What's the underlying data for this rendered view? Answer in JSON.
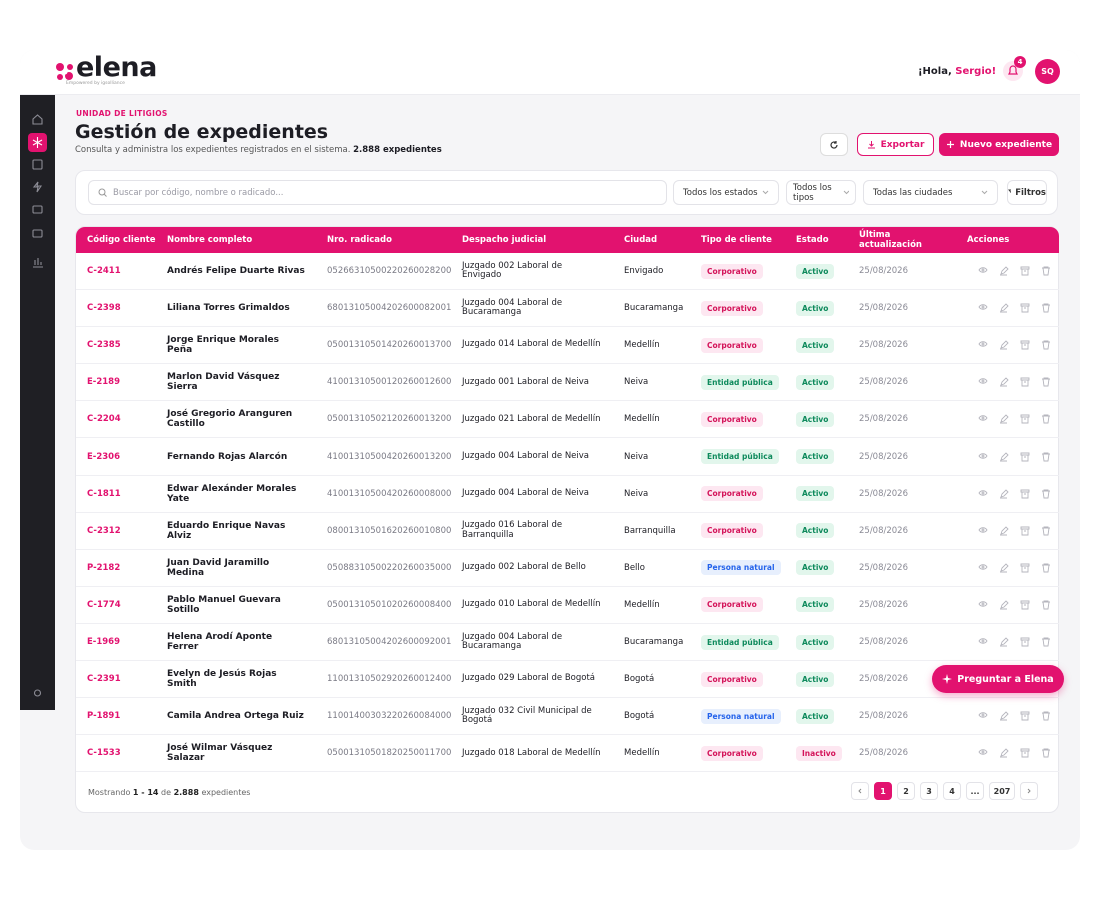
{
  "header": {
    "logo": "elena",
    "logo_tagline": "Empowered by igsolliance",
    "greeting": "¡Hola,",
    "user_name": "Sergio!",
    "notifications": "4",
    "avatar": "SQ"
  },
  "page": {
    "eyebrow": "UNIDAD DE LITIGIOS",
    "title": "Gestión de expedientes",
    "subtitle": "Consulta y administra los expedientes registrados en el sistema.",
    "total": "2.888 expedientes",
    "export_button": "Exportar",
    "new_button": "Nuevo expediente"
  },
  "filters": {
    "search_placeholder": "Buscar por código, nombre o radicado...",
    "status": "Todos los estados",
    "type": "Todos los tipos",
    "city": "Todas las ciudades",
    "button": "Filtros"
  },
  "table": {
    "columns": [
      "Código cliente",
      "Nombre completo",
      "Nro. radicado",
      "Despacho judicial",
      "Ciudad",
      "Tipo de cliente",
      "Estado",
      "Última actualización",
      "Acciones"
    ],
    "rows": [
      {
        "code": "C-2411",
        "name": "Andrés Felipe Duarte Rivas",
        "radicado": "05266310500220260028200",
        "court": "Juzgado 002 Laboral de Envigado",
        "city": "Envigado",
        "type": "Corporativo",
        "status": "Activo",
        "updated": "25/08/2026"
      },
      {
        "code": "C-2398",
        "name": "Liliana Torres Grimaldos",
        "radicado": "68013105004202600082001",
        "court": "Juzgado 004 Laboral de Bucaramanga",
        "city": "Bucaramanga",
        "type": "Corporativo",
        "status": "Activo",
        "updated": "25/08/2026"
      },
      {
        "code": "C-2385",
        "name": "Jorge Enrique Morales Peña",
        "radicado": "05001310501420260013700",
        "court": "Juzgado 014 Laboral de Medellín",
        "city": "Medellín",
        "type": "Corporativo",
        "status": "Activo",
        "updated": "25/08/2026"
      },
      {
        "code": "E-2189",
        "name": "Marlon David Vásquez Sierra",
        "radicado": "41001310500120260012600",
        "court": "Juzgado 001 Laboral de Neiva",
        "city": "Neiva",
        "type": "Entidad pública",
        "status": "Activo",
        "updated": "25/08/2026"
      },
      {
        "code": "C-2204",
        "name": "José Gregorio Aranguren Castillo",
        "radicado": "05001310502120260013200",
        "court": "Juzgado 021 Laboral de Medellín",
        "city": "Medellín",
        "type": "Corporativo",
        "status": "Activo",
        "updated": "25/08/2026"
      },
      {
        "code": "E-2306",
        "name": "Fernando Rojas Alarcón",
        "radicado": "41001310500420260013200",
        "court": "Juzgado 004 Laboral de Neiva",
        "city": "Neiva",
        "type": "Entidad pública",
        "status": "Activo",
        "updated": "25/08/2026"
      },
      {
        "code": "C-1811",
        "name": "Edwar Alexánder Morales Yate",
        "radicado": "41001310500420260008000",
        "court": "Juzgado 004 Laboral de Neiva",
        "city": "Neiva",
        "type": "Corporativo",
        "status": "Activo",
        "updated": "25/08/2026"
      },
      {
        "code": "C-2312",
        "name": "Eduardo Enrique Navas Alviz",
        "radicado": "08001310501620260010800",
        "court": "Juzgado 016 Laboral de Barranquilla",
        "city": "Barranquilla",
        "type": "Corporativo",
        "status": "Activo",
        "updated": "25/08/2026"
      },
      {
        "code": "P-2182",
        "name": "Juan David Jaramillo Medina",
        "radicado": "05088310500220260035000",
        "court": "Juzgado 002 Laboral de Bello",
        "city": "Bello",
        "type": "Persona natural",
        "status": "Activo",
        "updated": "25/08/2026"
      },
      {
        "code": "C-1774",
        "name": "Pablo Manuel Guevara Sotillo",
        "radicado": "05001310501020260008400",
        "court": "Juzgado 010 Laboral de Medellín",
        "city": "Medellín",
        "type": "Corporativo",
        "status": "Activo",
        "updated": "25/08/2026"
      },
      {
        "code": "E-1969",
        "name": "Helena Arodí Aponte Ferrer",
        "radicado": "68013105004202600092001",
        "court": "Juzgado 004 Laboral de Bucaramanga",
        "city": "Bucaramanga",
        "type": "Entidad pública",
        "status": "Activo",
        "updated": "25/08/2026"
      },
      {
        "code": "C-2391",
        "name": "Evelyn de Jesús Rojas Smith",
        "radicado": "11001310502920260012400",
        "court": "Juzgado 029 Laboral de Bogotá",
        "city": "Bogotá",
        "type": "Corporativo",
        "status": "Activo",
        "updated": "25/08/2026"
      },
      {
        "code": "P-1891",
        "name": "Camila Andrea Ortega Ruiz",
        "radicado": "11001400303220260084000",
        "court": "Juzgado 032 Civil Municipal de Bogotá",
        "city": "Bogotá",
        "type": "Persona natural",
        "status": "Activo",
        "updated": "25/08/2026"
      },
      {
        "code": "C-1533",
        "name": "José Wilmar Vásquez Salazar",
        "radicado": "05001310501820250011700",
        "court": "Juzgado 018 Laboral de Medellín",
        "city": "Medellín",
        "type": "Corporativo",
        "status": "Inactivo",
        "updated": "25/08/2026"
      }
    ]
  },
  "footer": {
    "showing": "Mostrando",
    "range": "1 - 14",
    "of": "de",
    "total": "2.888",
    "unit": "expedientes",
    "pages": [
      "1",
      "2",
      "3",
      "4",
      "...",
      "207"
    ]
  },
  "assistant_button": "Preguntar a Elena"
}
